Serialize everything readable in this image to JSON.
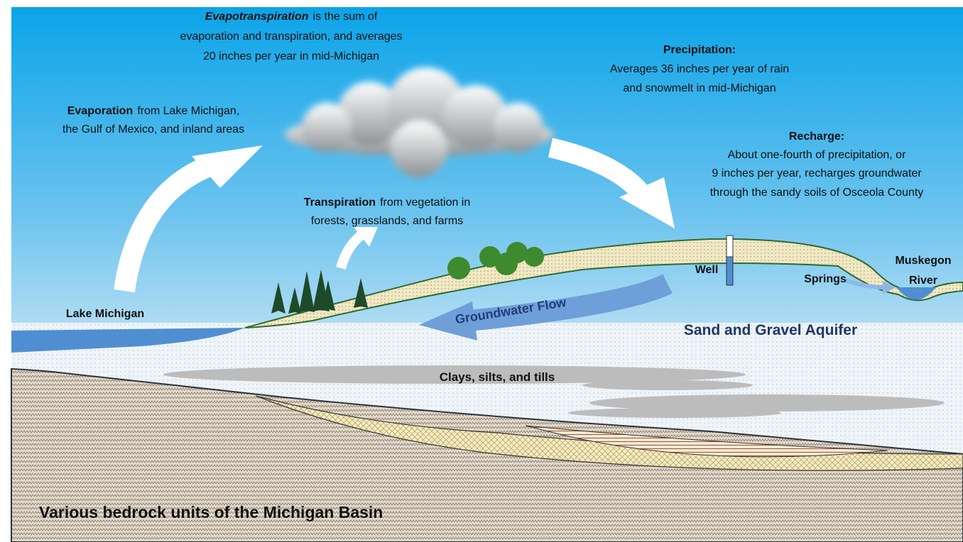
{
  "evapotranspiration": {
    "term": "Evapotranspiration",
    "lines": [
      "is the sum of",
      "evaporation and transpiration, and averages",
      "20 inches per year in mid-Michigan"
    ]
  },
  "evaporation": {
    "term": "Evaporation",
    "lines": [
      "from Lake Michigan,",
      "the Gulf of Mexico, and inland areas"
    ]
  },
  "precipitation": {
    "term": "Precipitation:",
    "lines": [
      "Averages 36 inches per year of rain",
      "and snowmelt in mid-Michigan"
    ]
  },
  "recharge": {
    "term": "Recharge:",
    "lines": [
      "About one-fourth of precipitation, or",
      "9 inches per year, recharges groundwater",
      "through the sandy soils of Osceola County"
    ]
  },
  "transpiration": {
    "term": "Transpiration",
    "lines": [
      "from vegetation in",
      "forests, grasslands, and farms"
    ]
  },
  "labels": {
    "lake": "Lake Michigan",
    "well": "Well",
    "springs": "Springs",
    "river": [
      "Muskegon",
      "River"
    ],
    "flow": "Groundwater Flow",
    "aquifer": "Sand and Gravel Aquifer",
    "clays": "Clays, silts, and tills",
    "bedrock": "Various bedrock units of the Michigan Basin"
  }
}
